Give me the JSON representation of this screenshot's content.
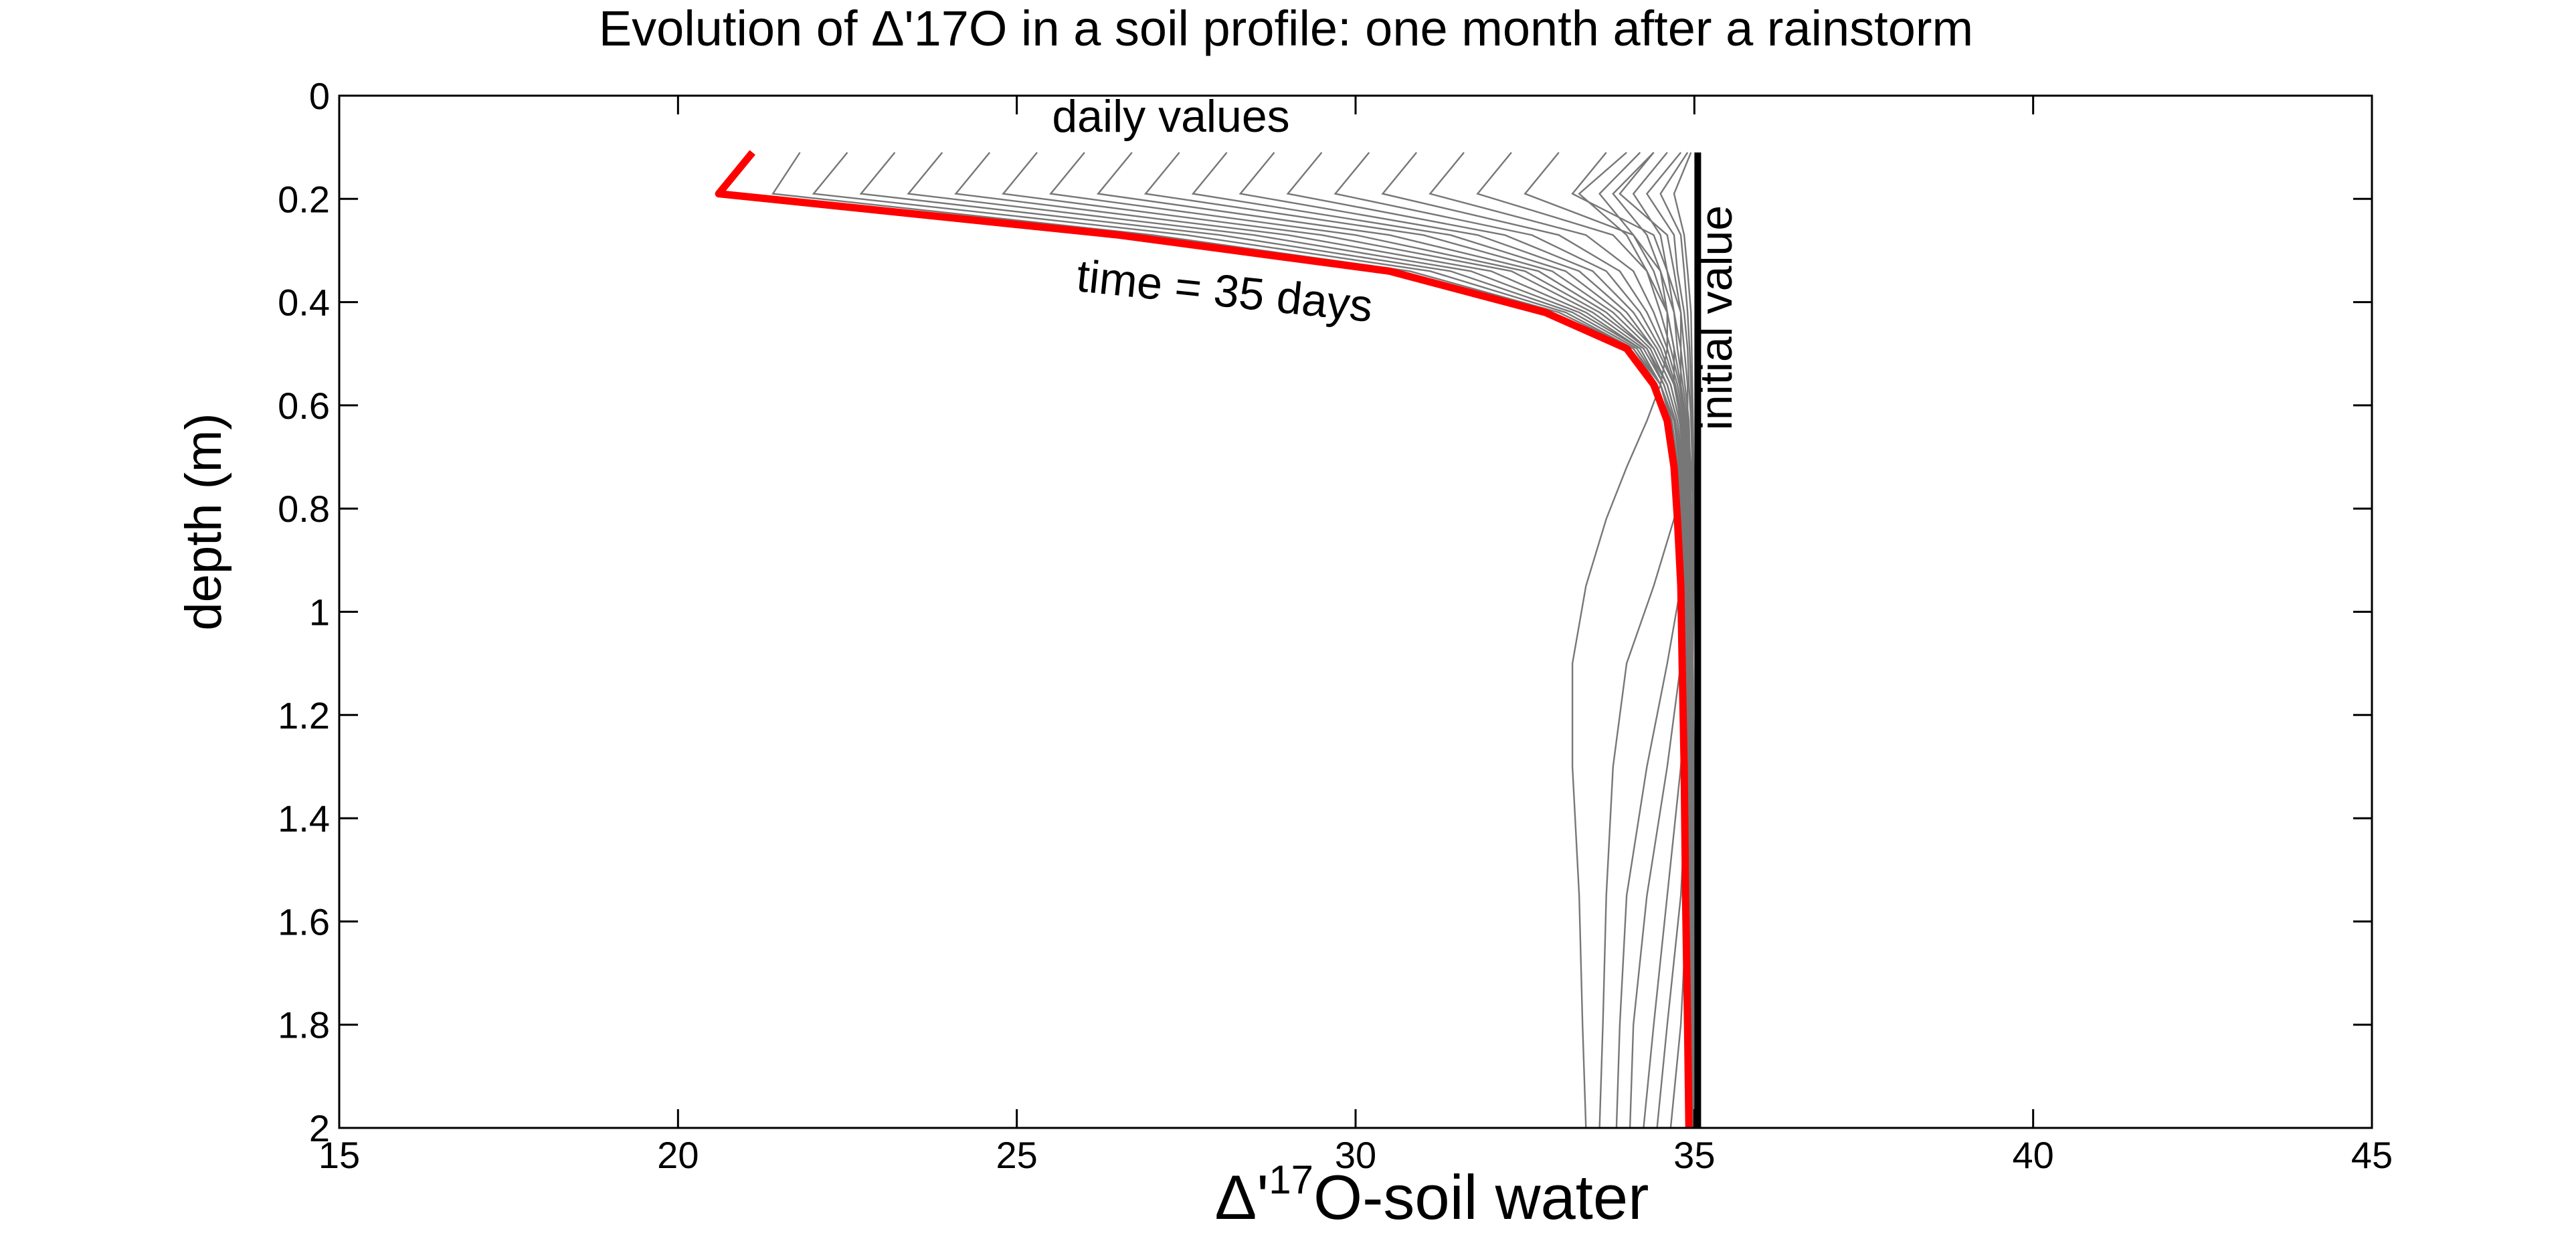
{
  "chart_data": {
    "type": "line",
    "title": "Evolution of Δ'17O in a soil profile: one month after a rainstorm",
    "xlabel_main": "Δ'",
    "xlabel_sup": "17",
    "xlabel_rest": "O-soil water",
    "ylabel": "depth (m)",
    "xlim": [
      15,
      45
    ],
    "ylim": [
      0,
      2
    ],
    "y_inverted": true,
    "grid": false,
    "x_ticks": [
      15,
      20,
      25,
      30,
      35,
      40,
      45
    ],
    "y_ticks": [
      0,
      0.2,
      0.4,
      0.6,
      0.8,
      1,
      1.2,
      1.4,
      1.6,
      1.8,
      2
    ],
    "annotations": {
      "daily": "daily values",
      "final": "time = 35 days",
      "initial": "initial value"
    },
    "colors": {
      "daily": "#777777",
      "final": "#ff0000",
      "initial": "#000000",
      "daily_label": "#6e6e6e"
    },
    "series": [
      {
        "role": "initial",
        "x": [
          35.05,
          35.05
        ],
        "y": [
          0.11,
          2.0
        ]
      },
      {
        "role": "final",
        "x": [
          21.1,
          20.6,
          26.5,
          30.5,
          32.8,
          34.0,
          34.4,
          34.6,
          34.7,
          34.75,
          34.8,
          34.82,
          34.85,
          34.87,
          34.9,
          34.92
        ],
        "y": [
          0.11,
          0.19,
          0.27,
          0.34,
          0.42,
          0.49,
          0.56,
          0.63,
          0.72,
          0.82,
          0.95,
          1.1,
          1.3,
          1.55,
          1.8,
          2.0
        ]
      }
    ],
    "daily_curves": [
      {
        "x": [
          21.8,
          21.4,
          27.0,
          30.8,
          33.0,
          34.1,
          34.45,
          34.62,
          34.73,
          34.8,
          34.84,
          34.87,
          34.9,
          34.92,
          34.94,
          34.96
        ],
        "y": [
          0.11,
          0.19,
          0.27,
          0.34,
          0.42,
          0.49,
          0.56,
          0.63,
          0.72,
          0.82,
          0.95,
          1.1,
          1.3,
          1.55,
          1.8,
          2.0
        ]
      },
      {
        "x": [
          22.5,
          22.0,
          27.5,
          31.1,
          33.1,
          34.1,
          34.5,
          34.65,
          34.75,
          34.8,
          34.85,
          34.88,
          34.92,
          34.94,
          34.96,
          34.97
        ],
        "y": [
          0.11,
          0.19,
          0.27,
          0.34,
          0.42,
          0.49,
          0.56,
          0.63,
          0.72,
          0.82,
          0.95,
          1.1,
          1.3,
          1.55,
          1.8,
          2.0
        ]
      },
      {
        "x": [
          23.2,
          22.7,
          28.0,
          31.4,
          33.2,
          34.15,
          34.5,
          34.67,
          34.76,
          34.82,
          34.86,
          34.9,
          34.92,
          34.95,
          34.96,
          34.98
        ],
        "y": [
          0.11,
          0.19,
          0.27,
          0.34,
          0.42,
          0.49,
          0.56,
          0.63,
          0.72,
          0.82,
          0.95,
          1.1,
          1.3,
          1.55,
          1.8,
          2.0
        ]
      },
      {
        "x": [
          23.9,
          23.4,
          28.5,
          31.7,
          33.3,
          34.2,
          34.5,
          34.7,
          34.78,
          34.83,
          34.88,
          34.9,
          34.93,
          34.95,
          34.97,
          34.98
        ],
        "y": [
          0.11,
          0.19,
          0.27,
          0.34,
          0.42,
          0.49,
          0.56,
          0.63,
          0.72,
          0.82,
          0.95,
          1.1,
          1.3,
          1.55,
          1.8,
          2.0
        ]
      },
      {
        "x": [
          24.6,
          24.1,
          29.0,
          32.0,
          33.4,
          34.2,
          34.5,
          34.7,
          34.8,
          34.85,
          34.88,
          34.92,
          34.94,
          34.96,
          34.97,
          34.98
        ],
        "y": [
          0.11,
          0.19,
          0.27,
          0.34,
          0.42,
          0.49,
          0.56,
          0.63,
          0.72,
          0.82,
          0.95,
          1.1,
          1.3,
          1.55,
          1.8,
          2.0
        ]
      },
      {
        "x": [
          25.3,
          24.8,
          29.5,
          32.3,
          33.5,
          34.25,
          34.55,
          34.72,
          34.8,
          34.86,
          34.9,
          34.92,
          34.95,
          34.96,
          34.98,
          34.99
        ],
        "y": [
          0.11,
          0.19,
          0.27,
          0.34,
          0.42,
          0.49,
          0.56,
          0.63,
          0.72,
          0.82,
          0.95,
          1.1,
          1.3,
          1.55,
          1.8,
          2.0
        ]
      },
      {
        "x": [
          26.0,
          25.5,
          30.0,
          32.5,
          33.6,
          34.3,
          34.55,
          34.72,
          34.82,
          34.87,
          34.9,
          34.93,
          34.95,
          34.97,
          34.98,
          34.99
        ],
        "y": [
          0.11,
          0.19,
          0.27,
          0.34,
          0.42,
          0.49,
          0.56,
          0.63,
          0.72,
          0.82,
          0.95,
          1.1,
          1.3,
          1.55,
          1.8,
          2.0
        ]
      },
      {
        "x": [
          26.7,
          26.2,
          30.5,
          32.7,
          33.7,
          34.3,
          34.6,
          34.75,
          34.83,
          34.88,
          34.91,
          34.94,
          34.96,
          34.97,
          34.98,
          34.99
        ],
        "y": [
          0.11,
          0.19,
          0.27,
          0.34,
          0.42,
          0.49,
          0.56,
          0.63,
          0.72,
          0.82,
          0.95,
          1.1,
          1.3,
          1.55,
          1.8,
          2.0
        ]
      },
      {
        "x": [
          27.4,
          26.9,
          31.0,
          32.9,
          33.8,
          34.35,
          34.6,
          34.75,
          34.84,
          34.88,
          34.92,
          34.94,
          34.96,
          34.97,
          34.98,
          35.0
        ],
        "y": [
          0.11,
          0.19,
          0.27,
          0.34,
          0.42,
          0.49,
          0.56,
          0.63,
          0.72,
          0.82,
          0.95,
          1.1,
          1.3,
          1.55,
          1.8,
          2.0
        ]
      },
      {
        "x": [
          28.1,
          27.6,
          31.4,
          33.1,
          33.9,
          34.4,
          34.65,
          34.78,
          34.85,
          34.9,
          34.92,
          34.95,
          34.96,
          34.98,
          34.99,
          35.0
        ],
        "y": [
          0.11,
          0.19,
          0.27,
          0.34,
          0.42,
          0.49,
          0.56,
          0.63,
          0.72,
          0.82,
          0.95,
          1.1,
          1.3,
          1.55,
          1.8,
          2.0
        ]
      },
      {
        "x": [
          28.8,
          28.3,
          31.8,
          33.3,
          34.0,
          34.4,
          34.65,
          34.78,
          34.86,
          34.9,
          34.93,
          34.95,
          34.97,
          34.98,
          34.99,
          35.0
        ],
        "y": [
          0.11,
          0.19,
          0.27,
          0.34,
          0.42,
          0.49,
          0.56,
          0.63,
          0.72,
          0.82,
          0.95,
          1.1,
          1.3,
          1.55,
          1.8,
          2.0
        ]
      },
      {
        "x": [
          29.5,
          29.0,
          32.2,
          33.5,
          34.1,
          34.45,
          34.7,
          34.8,
          34.87,
          34.91,
          34.94,
          34.96,
          34.97,
          34.98,
          34.99,
          35.0
        ],
        "y": [
          0.11,
          0.19,
          0.27,
          0.34,
          0.42,
          0.49,
          0.56,
          0.63,
          0.72,
          0.82,
          0.95,
          1.1,
          1.3,
          1.55,
          1.8,
          2.0
        ]
      },
      {
        "x": [
          30.2,
          29.7,
          32.6,
          33.7,
          34.2,
          34.5,
          34.7,
          34.82,
          34.88,
          34.92,
          34.94,
          34.96,
          34.97,
          34.98,
          34.99,
          35.0
        ],
        "y": [
          0.11,
          0.19,
          0.27,
          0.34,
          0.42,
          0.49,
          0.56,
          0.63,
          0.72,
          0.82,
          0.95,
          1.1,
          1.3,
          1.55,
          1.8,
          2.0
        ]
      },
      {
        "x": [
          30.9,
          30.4,
          33.0,
          33.9,
          34.3,
          34.55,
          34.72,
          34.83,
          34.89,
          34.92,
          34.95,
          34.96,
          34.98,
          34.99,
          34.99,
          35.0
        ],
        "y": [
          0.11,
          0.19,
          0.27,
          0.34,
          0.42,
          0.49,
          0.56,
          0.63,
          0.72,
          0.82,
          0.95,
          1.1,
          1.3,
          1.55,
          1.8,
          2.0
        ]
      },
      {
        "x": [
          31.6,
          31.1,
          33.4,
          34.1,
          34.4,
          34.6,
          34.75,
          34.85,
          34.9,
          34.93,
          34.95,
          34.97,
          34.98,
          34.99,
          35.0,
          35.0
        ],
        "y": [
          0.11,
          0.19,
          0.27,
          0.34,
          0.42,
          0.49,
          0.56,
          0.63,
          0.72,
          0.82,
          0.95,
          1.1,
          1.3,
          1.55,
          1.8,
          2.0
        ]
      },
      {
        "x": [
          32.3,
          31.8,
          33.8,
          34.3,
          34.5,
          34.65,
          34.78,
          34.86,
          34.91,
          34.94,
          34.96,
          34.97,
          34.98,
          34.99,
          35.0,
          35.0
        ],
        "y": [
          0.11,
          0.19,
          0.27,
          0.34,
          0.42,
          0.49,
          0.56,
          0.63,
          0.72,
          0.82,
          0.95,
          1.1,
          1.3,
          1.55,
          1.8,
          2.0
        ]
      },
      {
        "x": [
          33.0,
          32.5,
          34.1,
          34.5,
          34.6,
          34.7,
          34.8,
          34.88,
          34.92,
          34.95,
          34.96,
          34.98,
          34.99,
          34.99,
          35.0,
          35.0
        ],
        "y": [
          0.11,
          0.19,
          0.27,
          0.34,
          0.42,
          0.49,
          0.56,
          0.63,
          0.72,
          0.82,
          0.95,
          1.1,
          1.3,
          1.55,
          1.8,
          2.0
        ]
      },
      {
        "x": [
          33.7,
          33.2,
          34.4,
          34.6,
          34.7,
          34.75,
          34.83,
          34.9,
          34.93,
          34.95,
          34.97,
          34.98,
          34.99,
          35.0,
          35.0,
          35.0
        ],
        "y": [
          0.11,
          0.19,
          0.27,
          0.34,
          0.42,
          0.49,
          0.56,
          0.63,
          0.72,
          0.82,
          0.95,
          1.1,
          1.3,
          1.55,
          1.8,
          2.0
        ]
      },
      {
        "x": [
          34.4,
          33.9,
          34.6,
          34.7,
          34.8,
          34.8,
          34.86,
          34.92,
          34.94,
          34.96,
          34.97,
          34.98,
          34.99,
          35.0,
          35.0,
          35.0
        ],
        "y": [
          0.11,
          0.19,
          0.27,
          0.34,
          0.42,
          0.49,
          0.56,
          0.63,
          0.72,
          0.82,
          0.95,
          1.1,
          1.3,
          1.55,
          1.8,
          2.0
        ]
      },
      {
        "x": [
          34.0,
          33.3,
          34.0,
          34.3,
          34.6,
          34.6,
          34.5,
          34.3,
          34.0,
          33.7,
          33.4,
          33.2,
          33.2,
          33.3,
          33.35,
          33.4
        ],
        "y": [
          0.11,
          0.19,
          0.27,
          0.34,
          0.42,
          0.49,
          0.56,
          0.63,
          0.72,
          0.82,
          0.95,
          1.1,
          1.3,
          1.55,
          1.8,
          2.0
        ]
      },
      {
        "x": [
          34.2,
          33.6,
          34.1,
          34.4,
          34.6,
          34.7,
          34.7,
          34.8,
          34.9,
          34.7,
          34.4,
          34.0,
          33.8,
          33.7,
          33.65,
          33.6
        ],
        "y": [
          0.11,
          0.19,
          0.27,
          0.34,
          0.42,
          0.49,
          0.56,
          0.63,
          0.72,
          0.82,
          0.95,
          1.1,
          1.3,
          1.55,
          1.8,
          2.0
        ]
      },
      {
        "x": [
          34.4,
          33.8,
          34.3,
          34.5,
          34.7,
          34.8,
          34.8,
          34.85,
          34.9,
          34.9,
          34.8,
          34.6,
          34.3,
          34.0,
          33.9,
          33.85
        ],
        "y": [
          0.11,
          0.19,
          0.27,
          0.34,
          0.42,
          0.49,
          0.56,
          0.63,
          0.72,
          0.82,
          0.95,
          1.1,
          1.3,
          1.55,
          1.8,
          2.0
        ]
      },
      {
        "x": [
          34.6,
          34.1,
          34.5,
          34.6,
          34.8,
          34.85,
          34.9,
          34.9,
          34.95,
          34.95,
          34.9,
          34.8,
          34.6,
          34.3,
          34.1,
          34.05
        ],
        "y": [
          0.11,
          0.19,
          0.27,
          0.34,
          0.42,
          0.49,
          0.56,
          0.63,
          0.72,
          0.82,
          0.95,
          1.1,
          1.3,
          1.55,
          1.8,
          2.0
        ]
      },
      {
        "x": [
          34.8,
          34.3,
          34.7,
          34.75,
          34.85,
          34.9,
          34.92,
          34.95,
          34.97,
          34.98,
          34.95,
          34.9,
          34.8,
          34.6,
          34.4,
          34.25
        ],
        "y": [
          0.11,
          0.19,
          0.27,
          0.34,
          0.42,
          0.49,
          0.56,
          0.63,
          0.72,
          0.82,
          0.95,
          1.1,
          1.3,
          1.55,
          1.8,
          2.0
        ]
      },
      {
        "x": [
          34.9,
          34.5,
          34.8,
          34.85,
          34.9,
          34.93,
          34.95,
          34.96,
          34.98,
          34.99,
          34.98,
          34.95,
          34.9,
          34.8,
          34.6,
          34.45
        ],
        "y": [
          0.11,
          0.19,
          0.27,
          0.34,
          0.42,
          0.49,
          0.56,
          0.63,
          0.72,
          0.82,
          0.95,
          1.1,
          1.3,
          1.55,
          1.8,
          2.0
        ]
      },
      {
        "x": [
          34.95,
          34.7,
          34.85,
          34.9,
          34.95,
          34.96,
          34.97,
          34.98,
          34.99,
          35.0,
          34.99,
          34.98,
          34.95,
          34.9,
          34.8,
          34.65
        ],
        "y": [
          0.11,
          0.19,
          0.27,
          0.34,
          0.42,
          0.49,
          0.56,
          0.63,
          0.72,
          0.82,
          0.95,
          1.1,
          1.3,
          1.55,
          1.8,
          2.0
        ]
      }
    ]
  }
}
